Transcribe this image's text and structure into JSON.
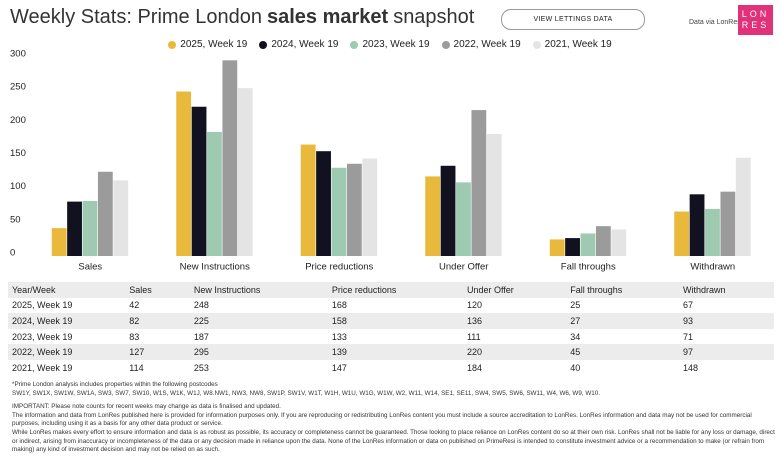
{
  "header": {
    "title": {
      "lead": "Weekly Stats: Prime London",
      "bold": "sales market",
      "tail": "snapshot"
    },
    "button": "VIEW LETTINGS DATA",
    "source": "Data via LonRes",
    "logo": [
      "LON",
      "RES"
    ]
  },
  "chart_data": {
    "type": "bar",
    "categories": [
      "Sales",
      "New Instructions",
      "Price reductions",
      "Under Offer",
      "Fall throughs",
      "Withdrawn"
    ],
    "series": [
      {
        "name": "2025, Week 19",
        "color": "#e8b93a",
        "values": [
          42,
          248,
          168,
          120,
          25,
          67
        ]
      },
      {
        "name": "2024, Week 19",
        "color": "#11111f",
        "values": [
          82,
          225,
          158,
          136,
          27,
          93
        ]
      },
      {
        "name": "2023, Week 19",
        "color": "#9dcab1",
        "values": [
          83,
          187,
          133,
          111,
          34,
          71
        ]
      },
      {
        "name": "2022, Week 19",
        "color": "#9b9b9b",
        "values": [
          127,
          295,
          139,
          220,
          45,
          97
        ]
      },
      {
        "name": "2021, Week 19",
        "color": "#e4e4e4",
        "values": [
          114,
          253,
          147,
          184,
          40,
          148
        ]
      }
    ],
    "ylim": [
      0,
      300
    ],
    "yticks": [
      0,
      50,
      100,
      150,
      200,
      250,
      300
    ],
    "grid": false
  },
  "table": {
    "header": "Year/Week"
  },
  "notes": {
    "postcodes": [
      "*Prime London analysis includes properties within the following postcodes",
      "SW1Y, SW1X, SW1W, SW1A, SW3, SW7, SW10, W1S, W1K, W1J, W8.NW1, NW3, NW8, SW1P, SW1V, W1T, W1H, W1U, W1G, W1W, W2, W11, W14, SE1, SE11, SW4, SW5, SW6, SW11, W4, W6, W9, W10."
    ],
    "disclaimer": [
      "IMPORTANT: Please note counts for recent weeks may change as data is finalised and updated.",
      "The information and data from LonRes published here is provided for information purposes only. If you are reproducing or redistributing LonRes content you must include a source accreditation to LonRes. LonRes information and data may not be used for commercial purposes, including using it as a basis for any other data product or service.",
      "While LonRes makes every effort to ensure information and data is as robust as possible, its accuracy or completeness cannot be guaranteed. Those looking to place reliance on LonRes content do so at their own risk. LonRes shall not be liable for any loss or damage, direct or indirect, arising from inaccuracy or incompleteness of the data or any decision made in reliance upon the data. None of the LonRes information or data on published on PrimeResi is intended to constitute investment advice or a recommendation to make (or refrain from making) any kind of investment decision and may not be relied on as such."
    ]
  }
}
